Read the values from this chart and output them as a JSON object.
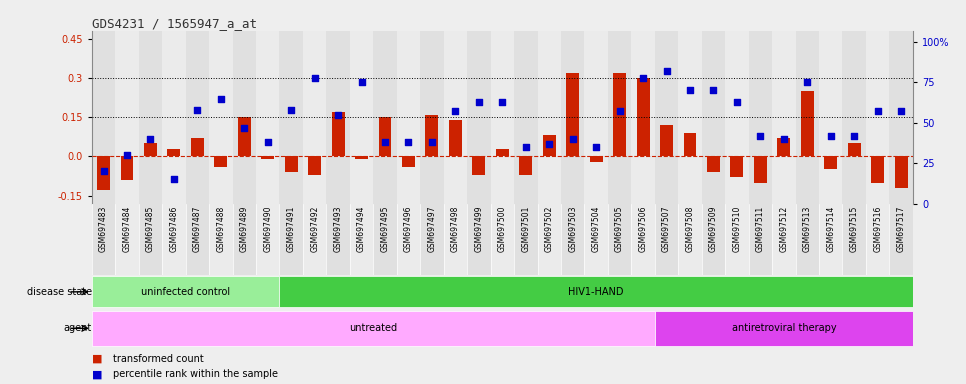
{
  "title": "GDS4231 / 1565947_a_at",
  "samples": [
    "GSM697483",
    "GSM697484",
    "GSM697485",
    "GSM697486",
    "GSM697487",
    "GSM697488",
    "GSM697489",
    "GSM697490",
    "GSM697491",
    "GSM697492",
    "GSM697493",
    "GSM697494",
    "GSM697495",
    "GSM697496",
    "GSM697497",
    "GSM697498",
    "GSM697499",
    "GSM697500",
    "GSM697501",
    "GSM697502",
    "GSM697503",
    "GSM697504",
    "GSM697505",
    "GSM697506",
    "GSM697507",
    "GSM697508",
    "GSM697509",
    "GSM697510",
    "GSM697511",
    "GSM697512",
    "GSM697513",
    "GSM697514",
    "GSM697515",
    "GSM697516",
    "GSM697517"
  ],
  "bar_values": [
    -0.13,
    -0.09,
    0.05,
    0.03,
    0.07,
    -0.04,
    0.15,
    -0.01,
    -0.06,
    -0.07,
    0.17,
    -0.01,
    0.15,
    -0.04,
    0.16,
    0.14,
    -0.07,
    0.03,
    -0.07,
    0.08,
    0.32,
    -0.02,
    0.32,
    0.3,
    0.12,
    0.09,
    -0.06,
    -0.08,
    -0.1,
    0.07,
    0.25,
    -0.05,
    0.05,
    -0.1,
    -0.12
  ],
  "dot_values_pct": [
    20,
    30,
    40,
    15,
    58,
    65,
    47,
    38,
    58,
    78,
    55,
    75,
    38,
    38,
    38,
    57,
    63,
    63,
    35,
    37,
    40,
    35,
    57,
    78,
    82,
    70,
    70,
    63,
    42,
    40,
    75,
    42,
    42,
    57,
    57
  ],
  "ylim_left": [
    -0.18,
    0.48
  ],
  "ylim_right": [
    0,
    107
  ],
  "yticks_left": [
    -0.15,
    0.0,
    0.15,
    0.3,
    0.45
  ],
  "yticks_right": [
    0,
    25,
    50,
    75,
    100
  ],
  "hlines": [
    0.15,
    0.3
  ],
  "bar_color": "#cc2200",
  "dot_color": "#0000cc",
  "zero_line_color": "#cc2200",
  "hline_color": "#000000",
  "disease_state_groups": [
    {
      "label": "uninfected control",
      "start": 0,
      "end": 8,
      "color": "#99ee99"
    },
    {
      "label": "HIV1-HAND",
      "start": 8,
      "end": 35,
      "color": "#44cc44"
    }
  ],
  "agent_groups": [
    {
      "label": "untreated",
      "start": 0,
      "end": 24,
      "color": "#ffaaff"
    },
    {
      "label": "antiretroviral therapy",
      "start": 24,
      "end": 35,
      "color": "#dd44ee"
    }
  ],
  "disease_state_label": "disease state",
  "agent_label": "agent",
  "legend_bar_label": "transformed count",
  "legend_dot_label": "percentile rank within the sample",
  "bg_color": "#eeeeee",
  "plot_bg_color": "#ffffff",
  "col_colors": [
    "#e0e0e0",
    "#ebebeb"
  ]
}
